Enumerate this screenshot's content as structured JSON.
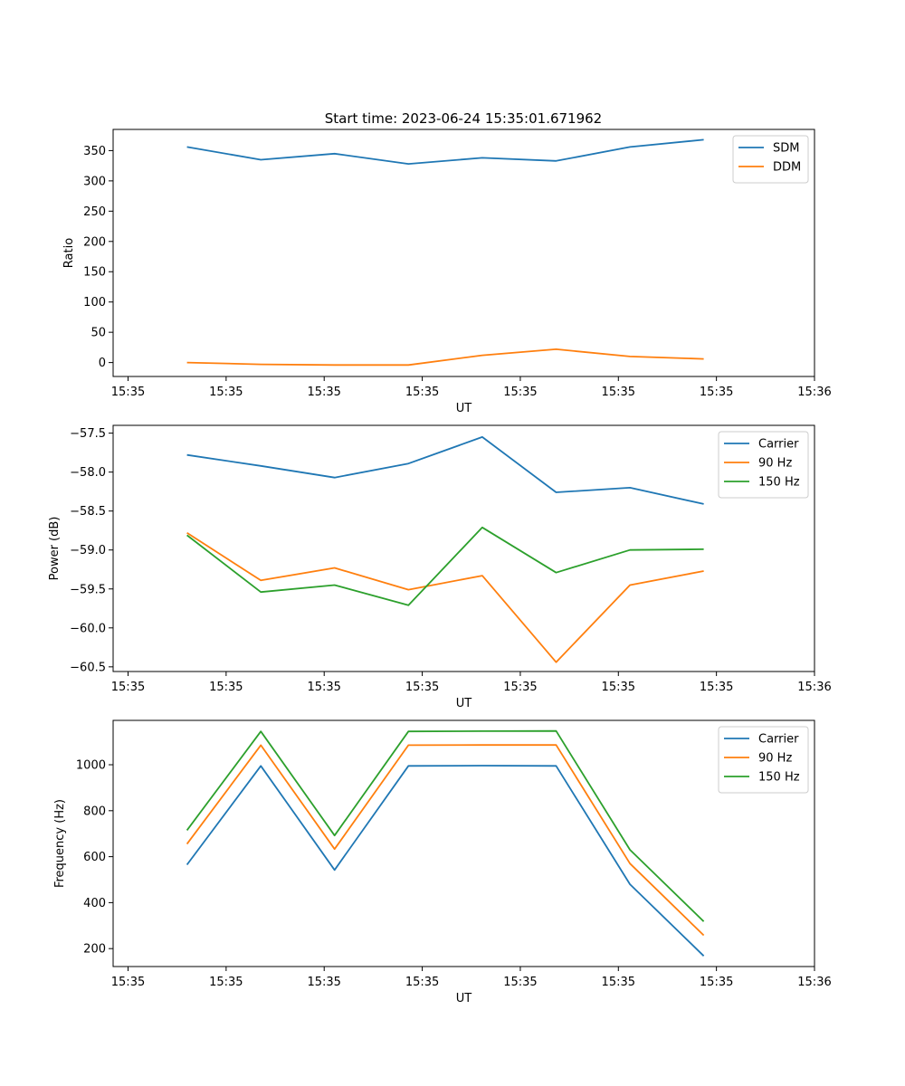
{
  "title": "Start time: 2023-06-24 15:35:01.671962",
  "chart_data": [
    {
      "type": "line",
      "title": "Start time: 2023-06-24 15:35:01.671962",
      "xlabel": "UT",
      "ylabel": "Ratio",
      "x_ticks": [
        "15:35",
        "15:35",
        "15:35",
        "15:35",
        "15:35",
        "15:35",
        "15:35"
      ],
      "x_last_tick": "15:36",
      "xlim": [
        0,
        9.5
      ],
      "x": [
        1,
        2,
        3,
        4,
        5,
        6,
        7,
        8
      ],
      "ylim": [
        -23,
        385
      ],
      "y_ticks": [
        0,
        50,
        100,
        150,
        200,
        250,
        300,
        350
      ],
      "y_tick_labels": [
        "0",
        "50",
        "100",
        "150",
        "200",
        "250",
        "300",
        "350"
      ],
      "legend_position": "upper right",
      "series": [
        {
          "name": "SDM",
          "color": "#1f77b4",
          "values": [
            356,
            335,
            345,
            328,
            338,
            333,
            356,
            368
          ]
        },
        {
          "name": "DDM",
          "color": "#ff7f0e",
          "values": [
            0,
            -3,
            -4,
            -4,
            12,
            22,
            10,
            6
          ]
        }
      ]
    },
    {
      "type": "line",
      "xlabel": "UT",
      "ylabel": "Power (dB)",
      "x_ticks": [
        "15:35",
        "15:35",
        "15:35",
        "15:35",
        "15:35",
        "15:35",
        "15:35"
      ],
      "x_last_tick": "15:36",
      "xlim": [
        0,
        9.5
      ],
      "x": [
        1,
        2,
        3,
        4,
        5,
        6,
        7,
        8
      ],
      "ylim": [
        -60.56,
        -57.4
      ],
      "y_ticks": [
        -60.5,
        -60.0,
        -59.5,
        -59.0,
        -58.5,
        -58.0,
        -57.5
      ],
      "y_tick_labels": [
        "−60.5",
        "−60.0",
        "−59.5",
        "−59.0",
        "−58.5",
        "−58.0",
        "−57.5"
      ],
      "legend_position": "upper right",
      "series": [
        {
          "name": "Carrier",
          "color": "#1f77b4",
          "values": [
            -57.78,
            -57.92,
            -58.07,
            -57.89,
            -57.55,
            -58.26,
            -58.2,
            -58.41
          ]
        },
        {
          "name": "90 Hz",
          "color": "#ff7f0e",
          "values": [
            -58.78,
            -59.39,
            -59.23,
            -59.51,
            -59.33,
            -60.44,
            -59.45,
            -59.27
          ]
        },
        {
          "name": "150 Hz",
          "color": "#2ca02c",
          "values": [
            -58.81,
            -59.54,
            -59.45,
            -59.71,
            -58.71,
            -59.29,
            -59.0,
            -58.99
          ]
        }
      ]
    },
    {
      "type": "line",
      "xlabel": "UT",
      "ylabel": "Frequency (Hz)",
      "x_ticks": [
        "15:35",
        "15:35",
        "15:35",
        "15:35",
        "15:35",
        "15:35",
        "15:35"
      ],
      "x_last_tick": "15:36",
      "xlim": [
        0,
        9.5
      ],
      "x": [
        1,
        2,
        3,
        4,
        5,
        6,
        7,
        8
      ],
      "ylim": [
        122,
        1193
      ],
      "y_ticks": [
        200,
        400,
        600,
        800,
        1000
      ],
      "y_tick_labels": [
        "200",
        "400",
        "600",
        "800",
        "1000"
      ],
      "legend_position": "upper right",
      "series": [
        {
          "name": "Carrier",
          "color": "#1f77b4",
          "values": [
            565,
            995,
            542,
            995,
            996,
            995,
            480,
            168
          ]
        },
        {
          "name": "90 Hz",
          "color": "#ff7f0e",
          "values": [
            655,
            1085,
            633,
            1085,
            1086,
            1086,
            570,
            258
          ]
        },
        {
          "name": "150 Hz",
          "color": "#2ca02c",
          "values": [
            715,
            1145,
            692,
            1145,
            1146,
            1147,
            630,
            318
          ]
        }
      ]
    }
  ]
}
